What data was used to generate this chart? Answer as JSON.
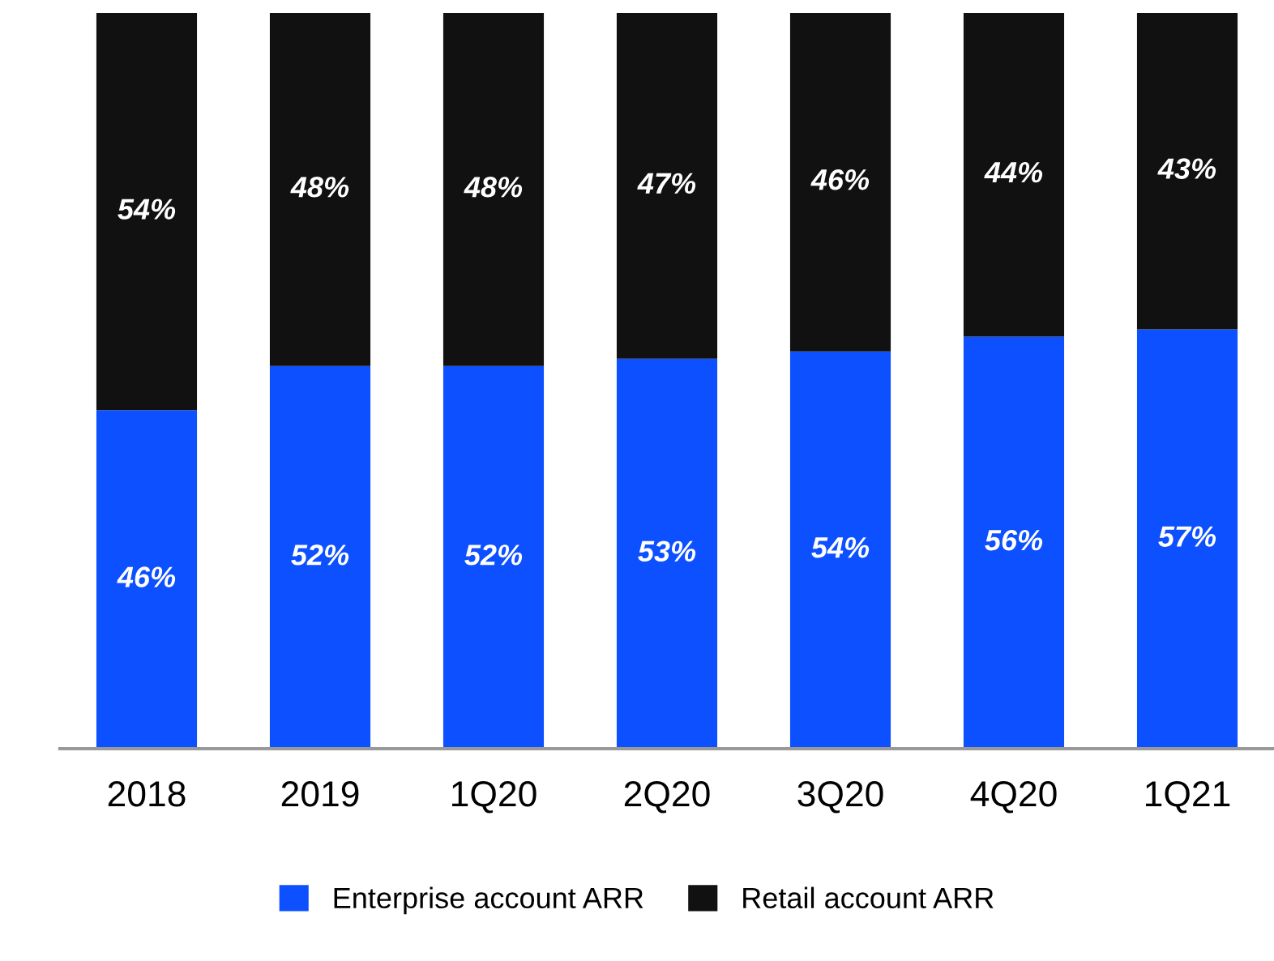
{
  "chart_data": {
    "type": "bar",
    "stacked": true,
    "categories": [
      "2018",
      "2019",
      "1Q20",
      "2Q20",
      "3Q20",
      "4Q20",
      "1Q21"
    ],
    "series": [
      {
        "name": "Enterprise account ARR",
        "color": "#0d50ff",
        "values": [
          46,
          52,
          52,
          53,
          54,
          56,
          57
        ],
        "value_labels": [
          "46%",
          "52%",
          "52%",
          "53%",
          "54%",
          "56%",
          "57%"
        ]
      },
      {
        "name": "Retail account ARR",
        "color": "#111111",
        "values": [
          54,
          48,
          48,
          47,
          46,
          44,
          43
        ],
        "value_labels": [
          "54%",
          "48%",
          "48%",
          "47%",
          "46%",
          "44%",
          "43%"
        ]
      }
    ],
    "legend": "bottom",
    "grid": false
  }
}
